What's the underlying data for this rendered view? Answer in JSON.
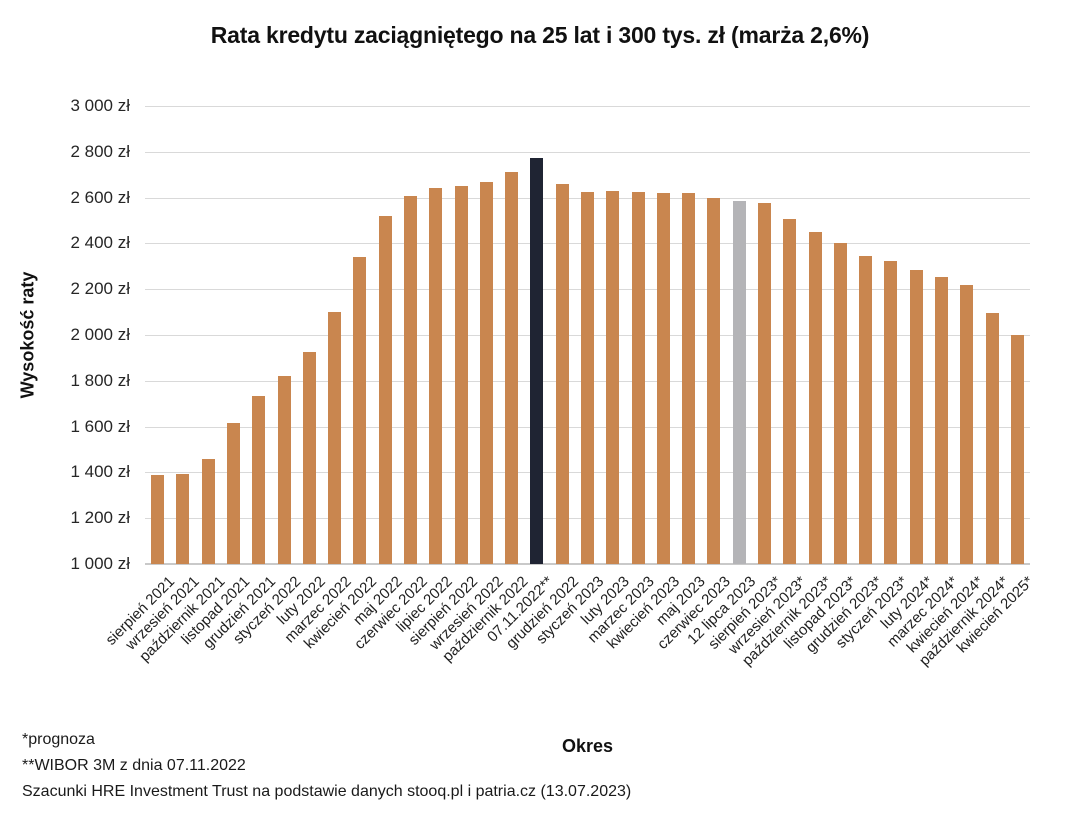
{
  "title": "Rata kredytu zaciągniętego na 25 lat i 300 tys. zł (marża 2,6%)",
  "y_axis": {
    "label": "Wysokość raty",
    "tick_labels": [
      "3 000 zł",
      "2 800 zł",
      "2 600 zł",
      "2 400 zł",
      "2 200 zł",
      "2 000 zł",
      "1 800 zł",
      "1 600 zł",
      "1 400 zł",
      "1 200 zł",
      "1 000 zł"
    ]
  },
  "x_axis": {
    "label": "Okres"
  },
  "footnotes": [
    "*prognoza",
    "**WIBOR 3M z dnia 07.11.2022",
    "Szacunki HRE Investment Trust na podstawie danych stooq.pl i patria.cz (13.07.2023)"
  ],
  "colors": {
    "bar_default": "#C9864F",
    "bar_dark": "#1F2433",
    "bar_gray": "#B4B4B7",
    "gridline": "#D9D9D9",
    "baseline": "#C9C9C9"
  },
  "chart_data": {
    "type": "bar",
    "title": "Rata kredytu zaciągniętego na 25 lat i 300 tys. zł (marża 2,6%)",
    "xlabel": "Okres",
    "ylabel": "Wysokość raty",
    "ylim": [
      1000,
      3000
    ],
    "ytick_step": 200,
    "grid": "horizontal",
    "legend": "none",
    "categories": [
      "sierpień 2021",
      "wrzesień 2021",
      "październik 2021",
      "listopad 2021",
      "grudzień 2021",
      "styczeń 2022",
      "luty 2022",
      "marzec 2022",
      "kwiecień 2022",
      "maj 2022",
      "czerwiec 2022",
      "lipiec 2022",
      "sierpień 2022",
      "wrzesień 2022",
      "październik 2022",
      "07.11.2022**",
      "grudzień 2022",
      "styczeń 2023",
      "luty 2023",
      "marzec 2023",
      "kwiecień 2023",
      "maj 2023",
      "czerwiec 2023",
      "12 lipca 2023",
      "sierpień 2023*",
      "wrzesień 2023*",
      "październik 2023*",
      "listopad 2023*",
      "grudzień 2023*",
      "styczeń 2023*",
      "luty 2024*",
      "marzec 2024*",
      "kwiecień 2024*",
      "październik 2024*",
      "kwiecień 2025*"
    ],
    "values": [
      1390,
      1395,
      1460,
      1615,
      1735,
      1820,
      1925,
      2100,
      2340,
      2520,
      2605,
      2640,
      2650,
      2670,
      2710,
      2775,
      2660,
      2625,
      2630,
      2625,
      2622,
      2620,
      2600,
      2585,
      2575,
      2505,
      2450,
      2400,
      2345,
      2325,
      2285,
      2255,
      2220,
      2095,
      2000
    ],
    "bar_color_overrides": {
      "15": "dark",
      "23": "gray"
    }
  }
}
